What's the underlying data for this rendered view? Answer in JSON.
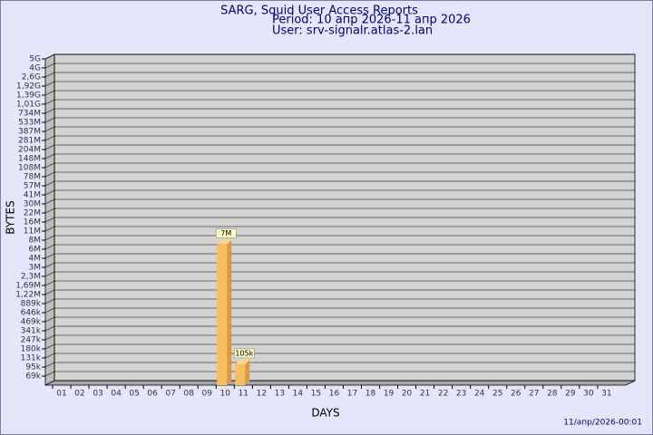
{
  "chart_data": {
    "type": "bar",
    "title": "SARG, Squid User Access Reports",
    "period": "Period: 10 апр 2026-11 апр 2026",
    "user": "User: srv-signalr.atlas-2.lan",
    "xlabel": "DAYS",
    "ylabel": "BYTES",
    "footer": "11/апр/2026-00:01",
    "categories": [
      "01",
      "02",
      "03",
      "04",
      "05",
      "06",
      "07",
      "08",
      "09",
      "10",
      "11",
      "12",
      "13",
      "14",
      "15",
      "16",
      "17",
      "18",
      "19",
      "20",
      "21",
      "22",
      "23",
      "24",
      "25",
      "26",
      "27",
      "28",
      "29",
      "30",
      "31"
    ],
    "values": [
      null,
      null,
      null,
      null,
      null,
      null,
      null,
      null,
      null,
      7000000,
      105000,
      null,
      null,
      null,
      null,
      null,
      null,
      null,
      null,
      null,
      null,
      null,
      null,
      null,
      null,
      null,
      null,
      null,
      null,
      null,
      null
    ],
    "value_labels": [
      null,
      null,
      null,
      null,
      null,
      null,
      null,
      null,
      null,
      "7M",
      "105k",
      null,
      null,
      null,
      null,
      null,
      null,
      null,
      null,
      null,
      null,
      null,
      null,
      null,
      null,
      null,
      null,
      null,
      null,
      null,
      null
    ],
    "color": "#f6be60",
    "ylim": [
      50000,
      5000000000
    ],
    "yticks": [
      {
        "value": 69000,
        "label": "69k"
      },
      {
        "value": 95000,
        "label": "95k"
      },
      {
        "value": 131000,
        "label": "131k"
      },
      {
        "value": 180000,
        "label": "180k"
      },
      {
        "value": 247000,
        "label": "247k"
      },
      {
        "value": 341000,
        "label": "341k"
      },
      {
        "value": 469000,
        "label": "469k"
      },
      {
        "value": 646000,
        "label": "646k"
      },
      {
        "value": 889000,
        "label": "889k"
      },
      {
        "value": 1220000,
        "label": "1,22M"
      },
      {
        "value": 1690000,
        "label": "1,69M"
      },
      {
        "value": 2300000,
        "label": "2,3M"
      },
      {
        "value": 3000000,
        "label": "3M"
      },
      {
        "value": 4000000,
        "label": "4M"
      },
      {
        "value": 6000000,
        "label": "6M"
      },
      {
        "value": 8000000,
        "label": "8M"
      },
      {
        "value": 11000000,
        "label": "11M"
      },
      {
        "value": 16000000,
        "label": "16M"
      },
      {
        "value": 22000000,
        "label": "22M"
      },
      {
        "value": 30000000,
        "label": "30M"
      },
      {
        "value": 41000000,
        "label": "41M"
      },
      {
        "value": 57000000,
        "label": "57M"
      },
      {
        "value": 78000000,
        "label": "78M"
      },
      {
        "value": 108000000,
        "label": "108M"
      },
      {
        "value": 148000000,
        "label": "148M"
      },
      {
        "value": 204000000,
        "label": "204M"
      },
      {
        "value": 281000000,
        "label": "281M"
      },
      {
        "value": 387000000,
        "label": "387M"
      },
      {
        "value": 533000000,
        "label": "533M"
      },
      {
        "value": 734000000,
        "label": "734M"
      },
      {
        "value": 1010000000,
        "label": "1,01G"
      },
      {
        "value": 1390000000,
        "label": "1,39G"
      },
      {
        "value": 1920000000,
        "label": "1,92G"
      },
      {
        "value": 2600000000,
        "label": "2,6G"
      },
      {
        "value": 4000000000,
        "label": "4G"
      },
      {
        "value": 5000000000,
        "label": "5G"
      }
    ],
    "grid": true
  }
}
